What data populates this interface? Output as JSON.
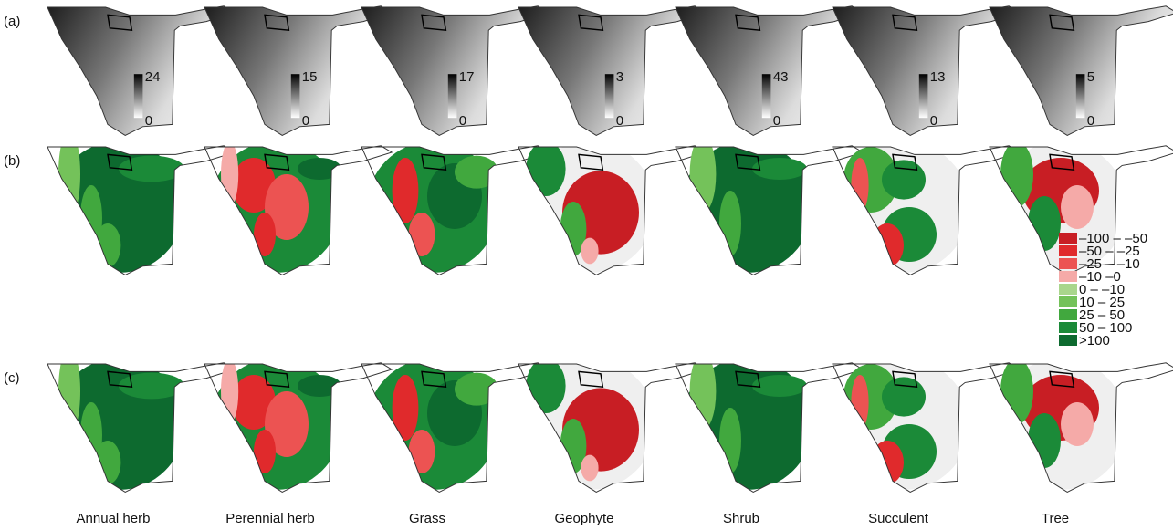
{
  "rows": [
    {
      "label": "(a)"
    },
    {
      "label": "(b)"
    },
    {
      "label": "(c)"
    }
  ],
  "columns": [
    "Annual herb",
    "Perennial herb",
    "Grass",
    "Geophyte",
    "Shrub",
    "Succulent",
    "Tree"
  ],
  "scales": [
    {
      "max": 24,
      "min": 0
    },
    {
      "max": 15,
      "min": 0
    },
    {
      "max": 17,
      "min": 0
    },
    {
      "max": 3,
      "min": 0
    },
    {
      "max": 43,
      "min": 0
    },
    {
      "max": 13,
      "min": 0
    },
    {
      "max": 5,
      "min": 0
    }
  ],
  "legend": [
    {
      "label": "–100 – –50",
      "color": "#c81e24"
    },
    {
      "label": "–50 – –25",
      "color": "#e02a2c"
    },
    {
      "label": "–25 – –10",
      "color": "#ec5352"
    },
    {
      "label": "–10 –0",
      "color": "#f5aaa8"
    },
    {
      "label": "0 – –10",
      "color": "#a9d68c"
    },
    {
      "label": "10 – 25",
      "color": "#74c25a"
    },
    {
      "label": "25 – 50",
      "color": "#41a83e"
    },
    {
      "label": "50 – 100",
      "color": "#1b8a38"
    },
    {
      "label": ">100",
      "color": "#0d6a2f"
    }
  ]
}
